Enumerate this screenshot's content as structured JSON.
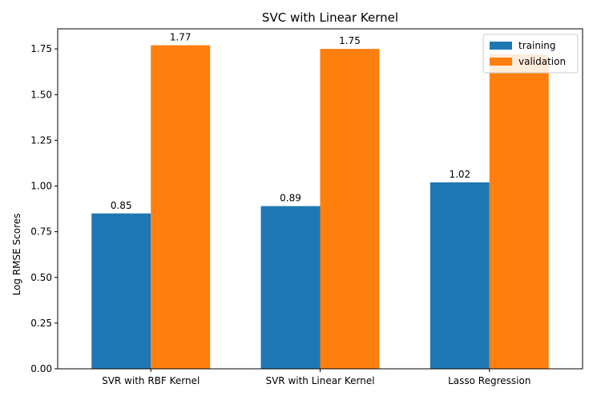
{
  "chart_data": {
    "type": "bar",
    "title": "SVC with Linear Kernel",
    "xlabel": "",
    "ylabel": "Log RMSE Scores",
    "categories": [
      "SVR with RBF Kernel",
      "SVR with Linear Kernel",
      "Lasso Regression"
    ],
    "series": [
      {
        "name": "training",
        "values": [
          0.85,
          0.89,
          1.02
        ],
        "color": "#1f77b4",
        "labels": [
          "0.85",
          "0.89",
          "1.02"
        ]
      },
      {
        "name": "validation",
        "values": [
          1.77,
          1.75,
          1.72
        ],
        "color": "#ff7f0e",
        "labels": [
          "1.77",
          "1.75",
          ""
        ]
      }
    ],
    "ylim": [
      0,
      1.86
    ],
    "yticks": [
      0.0,
      0.25,
      0.5,
      0.75,
      1.0,
      1.25,
      1.5,
      1.75
    ],
    "ytick_labels": [
      "0.00",
      "0.25",
      "0.50",
      "0.75",
      "1.00",
      "1.25",
      "1.50",
      "1.75"
    ],
    "grid": false,
    "legend_position": "top-right"
  }
}
